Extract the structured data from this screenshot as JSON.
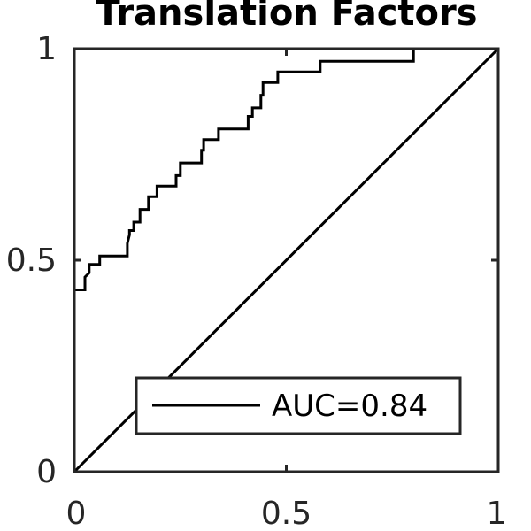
{
  "chart_data": {
    "type": "line",
    "title": "Translation Factors",
    "xlabel": "",
    "ylabel": "",
    "xlim": [
      0,
      1
    ],
    "ylim": [
      0,
      1
    ],
    "x_ticks": [
      "0",
      "0.5",
      "1"
    ],
    "y_ticks": [
      "0",
      "0.5",
      "1"
    ],
    "grid": false,
    "legend_placement": "bottom-right",
    "colors": {
      "roc": "#000000",
      "diagonal": "#000000",
      "axes": "#262626",
      "background": "#ffffff"
    },
    "series": [
      {
        "name": "AUC=0.84",
        "x": [
          0,
          0,
          0.025,
          0.025,
          0.035,
          0.035,
          0.06,
          0.06,
          0.125,
          0.125,
          0.13,
          0.13,
          0.14,
          0.14,
          0.155,
          0.155,
          0.175,
          0.175,
          0.195,
          0.195,
          0.24,
          0.24,
          0.25,
          0.25,
          0.3,
          0.3,
          0.305,
          0.305,
          0.34,
          0.34,
          0.41,
          0.41,
          0.42,
          0.42,
          0.44,
          0.44,
          0.445,
          0.445,
          0.48,
          0.48,
          0.58,
          0.58,
          0.8,
          0.8,
          1
        ],
        "y": [
          0,
          0.43,
          0.43,
          0.46,
          0.47,
          0.49,
          0.49,
          0.51,
          0.51,
          0.54,
          0.56,
          0.57,
          0.57,
          0.59,
          0.59,
          0.62,
          0.62,
          0.65,
          0.65,
          0.675,
          0.675,
          0.7,
          0.7,
          0.73,
          0.73,
          0.76,
          0.76,
          0.785,
          0.785,
          0.81,
          0.81,
          0.84,
          0.84,
          0.86,
          0.86,
          0.89,
          0.89,
          0.92,
          0.92,
          0.945,
          0.945,
          0.97,
          0.97,
          1,
          1
        ]
      },
      {
        "name": "",
        "x": [
          0,
          1
        ],
        "y": [
          0,
          1
        ]
      }
    ],
    "legend": {
      "entries": [
        "AUC=0.84"
      ]
    }
  }
}
